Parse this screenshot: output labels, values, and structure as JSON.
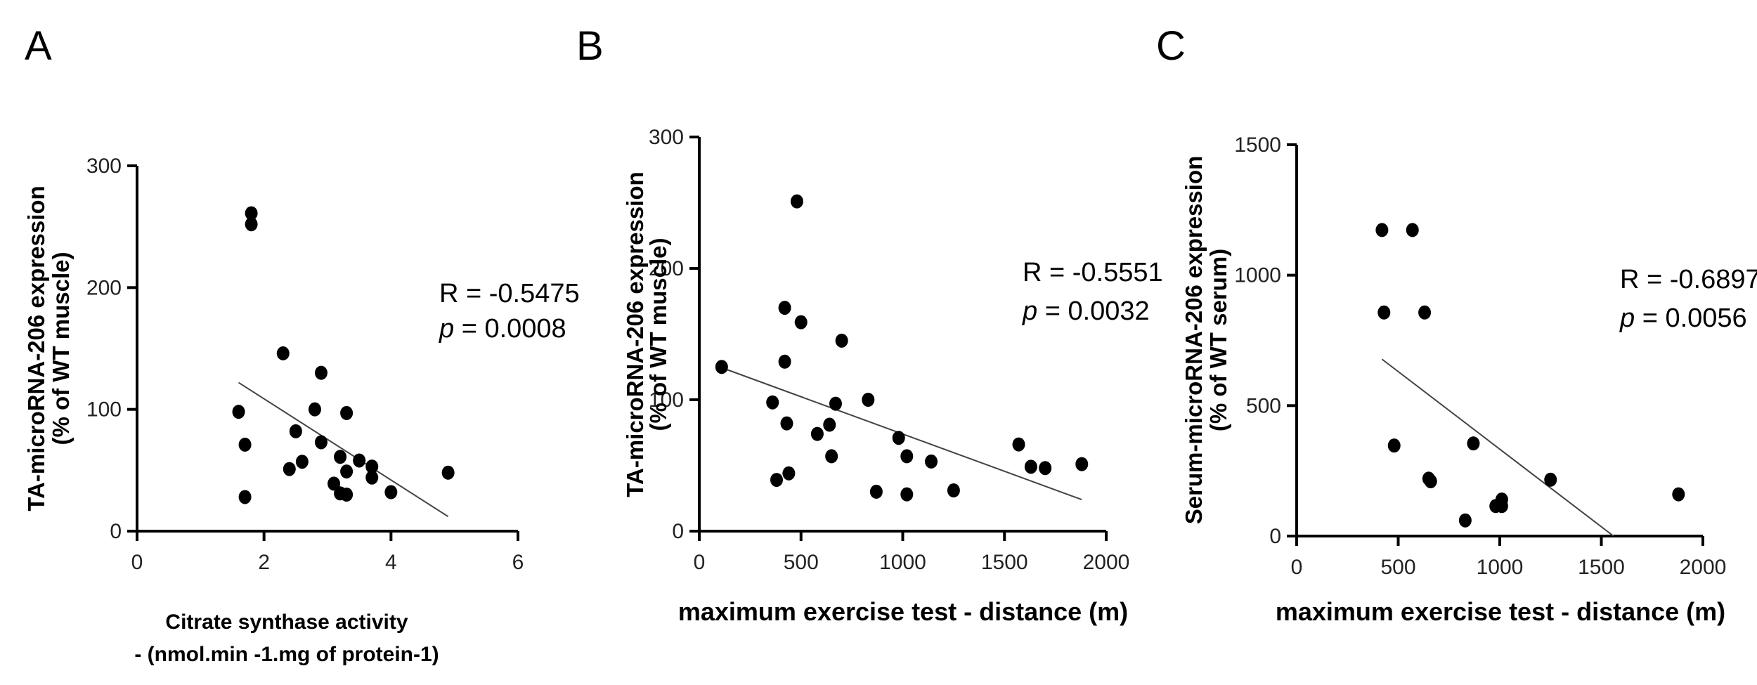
{
  "chart_data": [
    {
      "type": "scatter",
      "panel": "A",
      "title": "",
      "xlabel": [
        "Citrate synthase activity",
        "- (nmol.min -1.mg of protein-1)"
      ],
      "ylabel": [
        "TA-microRNA-206 expression",
        "(% of WT muscle)"
      ],
      "xlim": [
        0,
        6
      ],
      "ylim": [
        0,
        300
      ],
      "xticks": [
        "0",
        "2",
        "4",
        "6"
      ],
      "yticks": [
        "0",
        "100",
        "200",
        "300"
      ],
      "stats": {
        "r": "R = -0.5475",
        "p_label": "p",
        "p_value": " = 0.0008"
      },
      "trend": {
        "x1": 1.6,
        "y1": 122,
        "x2": 4.9,
        "y2": 12
      },
      "points": [
        {
          "x": 1.8,
          "y": 261
        },
        {
          "x": 1.8,
          "y": 252
        },
        {
          "x": 2.3,
          "y": 146
        },
        {
          "x": 2.9,
          "y": 130
        },
        {
          "x": 2.8,
          "y": 100
        },
        {
          "x": 1.6,
          "y": 98
        },
        {
          "x": 3.3,
          "y": 97
        },
        {
          "x": 2.5,
          "y": 82
        },
        {
          "x": 2.9,
          "y": 73
        },
        {
          "x": 1.7,
          "y": 71
        },
        {
          "x": 3.2,
          "y": 61
        },
        {
          "x": 3.5,
          "y": 58
        },
        {
          "x": 2.6,
          "y": 57
        },
        {
          "x": 3.7,
          "y": 53
        },
        {
          "x": 2.4,
          "y": 51
        },
        {
          "x": 3.3,
          "y": 49
        },
        {
          "x": 4.9,
          "y": 48
        },
        {
          "x": 3.7,
          "y": 44
        },
        {
          "x": 3.1,
          "y": 39
        },
        {
          "x": 4.0,
          "y": 32
        },
        {
          "x": 3.2,
          "y": 31
        },
        {
          "x": 3.3,
          "y": 30
        },
        {
          "x": 1.7,
          "y": 28
        }
      ]
    },
    {
      "type": "scatter",
      "panel": "B",
      "title": "",
      "xlabel": [
        "maximum exercise test - distance (m)"
      ],
      "ylabel": [
        "TA-microRNA-206 expression",
        "(% of WT muscle)"
      ],
      "xlim": [
        0,
        2000
      ],
      "ylim": [
        0,
        300
      ],
      "xticks": [
        "0",
        "500",
        "1000",
        "1500",
        "2000"
      ],
      "yticks": [
        "0",
        "100",
        "200",
        "300"
      ],
      "stats": {
        "r": "R = -0.5551",
        "p_label": "p",
        "p_value": " = 0.0032"
      },
      "trend": {
        "x1": 100,
        "y1": 125,
        "x2": 1880,
        "y2": 24
      },
      "points": [
        {
          "x": 480,
          "y": 251
        },
        {
          "x": 420,
          "y": 170
        },
        {
          "x": 500,
          "y": 159
        },
        {
          "x": 700,
          "y": 145
        },
        {
          "x": 420,
          "y": 129
        },
        {
          "x": 110,
          "y": 125
        },
        {
          "x": 830,
          "y": 100
        },
        {
          "x": 360,
          "y": 98
        },
        {
          "x": 670,
          "y": 97
        },
        {
          "x": 430,
          "y": 82
        },
        {
          "x": 640,
          "y": 81
        },
        {
          "x": 580,
          "y": 74
        },
        {
          "x": 980,
          "y": 71
        },
        {
          "x": 1570,
          "y": 66
        },
        {
          "x": 650,
          "y": 57
        },
        {
          "x": 1020,
          "y": 57
        },
        {
          "x": 1140,
          "y": 53
        },
        {
          "x": 1880,
          "y": 51
        },
        {
          "x": 1630,
          "y": 49
        },
        {
          "x": 1700,
          "y": 48
        },
        {
          "x": 440,
          "y": 44
        },
        {
          "x": 380,
          "y": 39
        },
        {
          "x": 1250,
          "y": 31
        },
        {
          "x": 870,
          "y": 30
        },
        {
          "x": 1020,
          "y": 28
        }
      ]
    },
    {
      "type": "scatter",
      "panel": "C",
      "title": "",
      "xlabel": [
        "maximum exercise test - distance (m)"
      ],
      "ylabel": [
        "Serum-microRNA-206 expression",
        "(% of WT serum)"
      ],
      "xlim": [
        0,
        2000
      ],
      "ylim": [
        0,
        1500
      ],
      "xticks": [
        "0",
        "500",
        "1000",
        "1500",
        "2000"
      ],
      "yticks": [
        "0",
        "500",
        "1000",
        "1500"
      ],
      "stats": {
        "r": "R = -0.6897",
        "p_label": "p",
        "p_value": " = 0.0056"
      },
      "trend": {
        "x1": 420,
        "y1": 678,
        "x2": 1560,
        "y2": 0
      },
      "points": [
        {
          "x": 420,
          "y": 1173
        },
        {
          "x": 570,
          "y": 1173
        },
        {
          "x": 430,
          "y": 857
        },
        {
          "x": 630,
          "y": 857
        },
        {
          "x": 480,
          "y": 347
        },
        {
          "x": 870,
          "y": 355
        },
        {
          "x": 650,
          "y": 220
        },
        {
          "x": 660,
          "y": 210
        },
        {
          "x": 1250,
          "y": 216
        },
        {
          "x": 1010,
          "y": 140
        },
        {
          "x": 980,
          "y": 115
        },
        {
          "x": 1010,
          "y": 115
        },
        {
          "x": 1880,
          "y": 160
        },
        {
          "x": 830,
          "y": 60
        }
      ]
    }
  ]
}
